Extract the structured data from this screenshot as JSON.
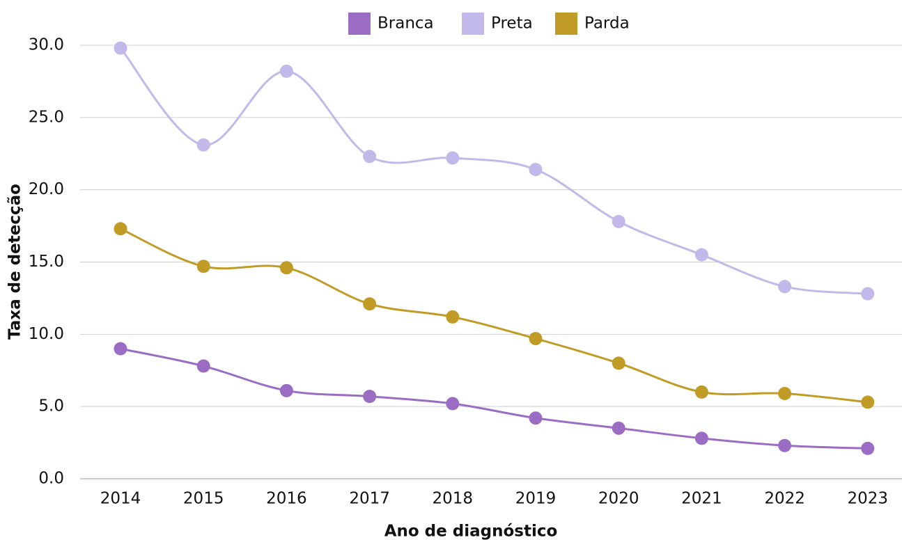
{
  "chart_data": {
    "type": "line",
    "x_label": "Ano de diagnóstico",
    "y_label": "Taxa de detecção",
    "categories": [
      "2014",
      "2015",
      "2016",
      "2017",
      "2018",
      "2019",
      "2020",
      "2021",
      "2022",
      "2023"
    ],
    "series": [
      {
        "name": "Branca",
        "color": "#9a6cc4",
        "values": [
          9.0,
          7.8,
          6.1,
          5.7,
          5.2,
          4.2,
          3.5,
          2.8,
          2.3,
          2.1
        ]
      },
      {
        "name": "Preta",
        "color": "#c2b8ea",
        "values": [
          29.8,
          23.1,
          28.2,
          22.3,
          22.2,
          21.4,
          17.8,
          15.5,
          13.3,
          12.8
        ]
      },
      {
        "name": "Parda",
        "color": "#c09c26",
        "values": [
          17.3,
          14.7,
          14.6,
          12.1,
          11.2,
          9.7,
          8.0,
          6.0,
          5.9,
          5.3
        ]
      }
    ],
    "ylim": [
      0,
      30
    ],
    "yticks": [
      {
        "value": 0,
        "label": "0.0"
      },
      {
        "value": 5,
        "label": "5.0"
      },
      {
        "value": 10,
        "label": "10.0"
      },
      {
        "value": 15,
        "label": "15.0"
      },
      {
        "value": 20,
        "label": "20.0"
      },
      {
        "value": 25,
        "label": "25.0"
      },
      {
        "value": 30,
        "label": "30.0"
      }
    ],
    "grid": true,
    "legend": "top"
  }
}
